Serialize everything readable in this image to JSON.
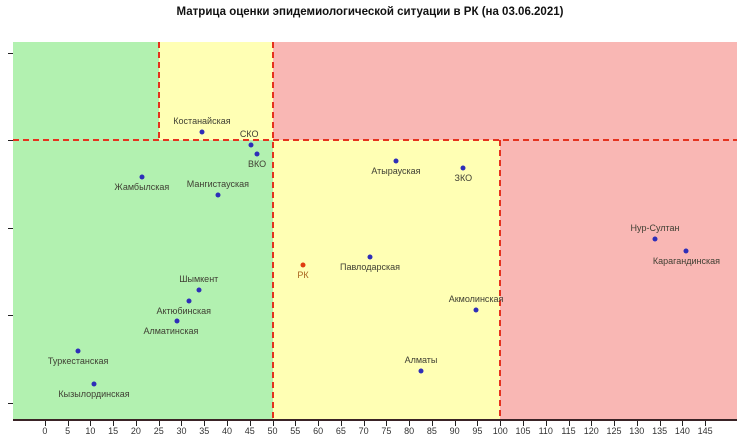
{
  "chart_data": {
    "type": "scatter",
    "title": "Матрица оценки эпидемиологической ситуации в РК (на 03.06.2021)",
    "xlabel": "",
    "ylabel": "",
    "xlim": [
      -7,
      152
    ],
    "ylim": [
      0.6815,
      1.1125
    ],
    "x_ticks": [
      0,
      5,
      10,
      15,
      20,
      25,
      30,
      35,
      40,
      45,
      50,
      55,
      60,
      65,
      70,
      75,
      80,
      85,
      90,
      95,
      100,
      105,
      110,
      115,
      120,
      125,
      130,
      135,
      140,
      145
    ],
    "y_ticks": [
      1.1,
      1.0,
      0.9,
      0.8,
      0.7
    ],
    "grid": false,
    "legend_position": "none",
    "r_threshold": 1.0,
    "x_threshold_upper_band": 25,
    "x_thresholds_lower_band": [
      50,
      100
    ],
    "colors": {
      "green": "#b2f1b0",
      "yellow": "#ffffb4",
      "red": "#f9b7b4",
      "dashed_line": "#e5321e",
      "point": "#2e2eb8",
      "point_rk": "#e03c10",
      "label": "#3f3f33",
      "label_rk": "#a9641e"
    },
    "zones": [
      {
        "id": "green-upper",
        "color": "green",
        "x": [
          -7,
          25
        ],
        "r": [
          1.0,
          1.1125
        ]
      },
      {
        "id": "yellow-upper",
        "color": "yellow",
        "x": [
          25,
          50
        ],
        "r": [
          1.0,
          1.1125
        ]
      },
      {
        "id": "red-upper",
        "color": "red",
        "x": [
          50,
          152
        ],
        "r": [
          1.0,
          1.1125
        ]
      },
      {
        "id": "green-lower",
        "color": "green",
        "x": [
          -7,
          50
        ],
        "r": [
          0.6815,
          1.0
        ]
      },
      {
        "id": "yellow-lower",
        "color": "yellow",
        "x": [
          50,
          100
        ],
        "r": [
          0.6815,
          1.0
        ]
      },
      {
        "id": "red-lower",
        "color": "red",
        "x": [
          100,
          152
        ],
        "r": [
          0.6815,
          1.0
        ]
      }
    ],
    "threshold_lines": [
      {
        "id": "r-equals-1",
        "orient": "h",
        "at": 1.0,
        "from": -7,
        "to": 152
      },
      {
        "id": "x-25-upper-band",
        "orient": "v",
        "at": 25,
        "from": 1.0,
        "to": 1.1125
      },
      {
        "id": "x-50-full",
        "orient": "v",
        "at": 50,
        "from": 0.6815,
        "to": 1.1125
      },
      {
        "id": "x-100-lower-band",
        "orient": "v",
        "at": 100,
        "from": 0.6815,
        "to": 1.0
      }
    ],
    "points": [
      {
        "name": "Костанайская",
        "x": 34.5,
        "r": 1.01,
        "label_pos": "above"
      },
      {
        "name": "СКО",
        "x": 45.3,
        "r": 0.995,
        "label_pos": "above",
        "dx": -2
      },
      {
        "name": "ВКО",
        "x": 46.6,
        "r": 0.984,
        "label_pos": "below"
      },
      {
        "name": "Жамбылская",
        "x": 21.3,
        "r": 0.958,
        "label_pos": "below"
      },
      {
        "name": "Мангистауская",
        "x": 38.0,
        "r": 0.938,
        "label_pos": "above"
      },
      {
        "name": "Атырауская",
        "x": 77.1,
        "r": 0.976,
        "label_pos": "below"
      },
      {
        "name": "ЗКО",
        "x": 91.9,
        "r": 0.968,
        "label_pos": "below"
      },
      {
        "name": "РК",
        "x": 56.7,
        "r": 0.858,
        "label_pos": "below",
        "highlight": true
      },
      {
        "name": "Павлодарская",
        "x": 71.4,
        "r": 0.867,
        "label_pos": "below"
      },
      {
        "name": "Акмолинская",
        "x": 94.7,
        "r": 0.806,
        "label_pos": "above"
      },
      {
        "name": "Алматы",
        "x": 82.6,
        "r": 0.736,
        "label_pos": "above"
      },
      {
        "name": "Нур-Султан",
        "x": 134.0,
        "r": 0.887,
        "label_pos": "above"
      },
      {
        "name": "Карагандинская",
        "x": 140.9,
        "r": 0.874,
        "label_pos": "below"
      },
      {
        "name": "Шымкент",
        "x": 33.8,
        "r": 0.829,
        "label_pos": "above"
      },
      {
        "name": "Актюбинская",
        "x": 31.6,
        "r": 0.816,
        "label_pos": "below",
        "dx": -5
      },
      {
        "name": "Алматинская",
        "x": 29.0,
        "r": 0.794,
        "label_pos": "below",
        "dx": -6
      },
      {
        "name": "Туркестанская",
        "x": 7.3,
        "r": 0.759,
        "label_pos": "below"
      },
      {
        "name": "Кызылординская",
        "x": 10.8,
        "r": 0.721,
        "label_pos": "below"
      }
    ]
  }
}
